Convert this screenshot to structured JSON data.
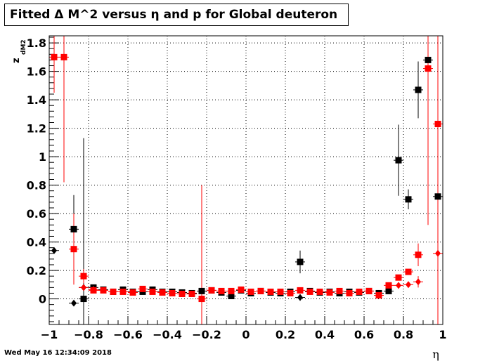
{
  "title": "Fitted Δ M^2 versus η and p for Global deuteron",
  "timestamp": "Wed May 16 12:34:09 2018",
  "chart_data": {
    "type": "scatter",
    "title": "Fitted Δ M^2 versus η and p for Global deuteron",
    "xlabel": "η",
    "ylabel": "z",
    "ylabel_sub": "dM2",
    "xlim": [
      -1,
      1
    ],
    "ylim": [
      -0.18,
      1.85
    ],
    "x_ticks": [
      -1,
      -0.8,
      -0.6,
      -0.4,
      -0.2,
      0,
      0.2,
      0.4,
      0.6,
      0.8,
      1
    ],
    "x_tick_labels": [
      "−1",
      "−0.8",
      "−0.6",
      "−0.4",
      "−0.2",
      "0",
      "0.2",
      "0.4",
      "0.6",
      "0.8",
      "1"
    ],
    "y_ticks": [
      0,
      0.2,
      0.4,
      0.6,
      0.8,
      1,
      1.2,
      1.4,
      1.6,
      1.8
    ],
    "y_tick_labels": [
      "0",
      "0.2",
      "0.4",
      "0.6",
      "0.8",
      "1",
      "1.2",
      "1.4",
      "1.6",
      "1.8"
    ],
    "grid": true,
    "series": [
      {
        "color": "#000000",
        "marker": "diamond",
        "points": [
          {
            "x": -0.975,
            "y": 0.34,
            "err": 0
          },
          {
            "x": -0.875,
            "y": -0.03,
            "err": 0
          },
          {
            "x": -0.825,
            "y": 0.08,
            "err": 0
          },
          {
            "x": 0.275,
            "y": 0.01,
            "err": 0
          }
        ]
      },
      {
        "color": "#000000",
        "marker": "square",
        "points": [
          {
            "x": -0.875,
            "y": 0.49,
            "err": 0.24
          },
          {
            "x": -0.825,
            "y": 0.0,
            "err": 1.13
          },
          {
            "x": -0.775,
            "y": 0.08,
            "err": 0
          },
          {
            "x": -0.725,
            "y": 0.065,
            "err": 0
          },
          {
            "x": -0.675,
            "y": 0.05,
            "err": 0
          },
          {
            "x": -0.625,
            "y": 0.065,
            "err": 0
          },
          {
            "x": -0.575,
            "y": 0.05,
            "err": 0
          },
          {
            "x": -0.525,
            "y": 0.05,
            "err": 0
          },
          {
            "x": -0.475,
            "y": 0.065,
            "err": 0
          },
          {
            "x": -0.425,
            "y": 0.05,
            "err": 0
          },
          {
            "x": -0.375,
            "y": 0.05,
            "err": 0
          },
          {
            "x": -0.325,
            "y": 0.045,
            "err": 0
          },
          {
            "x": -0.275,
            "y": 0.04,
            "err": 0
          },
          {
            "x": -0.225,
            "y": 0.055,
            "err": 0
          },
          {
            "x": -0.175,
            "y": 0.06,
            "err": 0
          },
          {
            "x": -0.125,
            "y": 0.045,
            "err": 0
          },
          {
            "x": -0.075,
            "y": 0.02,
            "err": 0
          },
          {
            "x": -0.025,
            "y": 0.06,
            "err": 0
          },
          {
            "x": 0.025,
            "y": 0.04,
            "err": 0
          },
          {
            "x": 0.075,
            "y": 0.055,
            "err": 0
          },
          {
            "x": 0.125,
            "y": 0.045,
            "err": 0
          },
          {
            "x": 0.175,
            "y": 0.04,
            "err": 0
          },
          {
            "x": 0.225,
            "y": 0.05,
            "err": 0
          },
          {
            "x": 0.275,
            "y": 0.26,
            "err": 0.08
          },
          {
            "x": 0.325,
            "y": 0.055,
            "err": 0
          },
          {
            "x": 0.375,
            "y": 0.045,
            "err": 0
          },
          {
            "x": 0.425,
            "y": 0.05,
            "err": 0
          },
          {
            "x": 0.475,
            "y": 0.04,
            "err": 0
          },
          {
            "x": 0.525,
            "y": 0.05,
            "err": 0
          },
          {
            "x": 0.575,
            "y": 0.045,
            "err": 0
          },
          {
            "x": 0.625,
            "y": 0.055,
            "err": 0
          },
          {
            "x": 0.675,
            "y": 0.04,
            "err": 0
          },
          {
            "x": 0.725,
            "y": 0.055,
            "err": 0
          },
          {
            "x": 0.775,
            "y": 0.975,
            "err": 0.25
          },
          {
            "x": 0.825,
            "y": 0.7,
            "err": 0.07
          },
          {
            "x": 0.875,
            "y": 1.47,
            "err": 0.2
          },
          {
            "x": 0.925,
            "y": 1.68,
            "err": 0.09
          },
          {
            "x": 0.975,
            "y": 0.72,
            "err": 0.2
          }
        ]
      },
      {
        "color": "#ff0000",
        "marker": "diamond",
        "points": [
          {
            "x": -0.825,
            "y": 0.08,
            "err": 0
          },
          {
            "x": -0.775,
            "y": 0.065,
            "err": 0
          },
          {
            "x": 0.775,
            "y": 0.095,
            "err": 0
          },
          {
            "x": 0.825,
            "y": 0.1,
            "err": 0
          },
          {
            "x": 0.875,
            "y": 0.12,
            "err": 0.04
          },
          {
            "x": 0.975,
            "y": 0.32,
            "err": 1.2
          }
        ]
      },
      {
        "color": "#ff0000",
        "marker": "square",
        "points": [
          {
            "x": -0.975,
            "y": 1.7,
            "err": 0.25
          },
          {
            "x": -0.925,
            "y": 1.7,
            "err": 0.88
          },
          {
            "x": -0.875,
            "y": 0.35,
            "err": 0.25
          },
          {
            "x": -0.825,
            "y": 0.16,
            "err": 0.05
          },
          {
            "x": -0.775,
            "y": 0.06,
            "err": 0
          },
          {
            "x": -0.725,
            "y": 0.06,
            "err": 0
          },
          {
            "x": -0.675,
            "y": 0.05,
            "err": 0
          },
          {
            "x": -0.625,
            "y": 0.05,
            "err": 0
          },
          {
            "x": -0.575,
            "y": 0.045,
            "err": 0
          },
          {
            "x": -0.525,
            "y": 0.07,
            "err": 0
          },
          {
            "x": -0.475,
            "y": 0.05,
            "err": 0
          },
          {
            "x": -0.425,
            "y": 0.045,
            "err": 0
          },
          {
            "x": -0.375,
            "y": 0.04,
            "err": 0
          },
          {
            "x": -0.325,
            "y": 0.035,
            "err": 0
          },
          {
            "x": -0.275,
            "y": 0.035,
            "err": 0
          },
          {
            "x": -0.225,
            "y": 0.0,
            "err": 0.8
          },
          {
            "x": -0.175,
            "y": 0.06,
            "err": 0
          },
          {
            "x": -0.125,
            "y": 0.055,
            "err": 0
          },
          {
            "x": -0.075,
            "y": 0.055,
            "err": 0
          },
          {
            "x": -0.025,
            "y": 0.065,
            "err": 0
          },
          {
            "x": 0.025,
            "y": 0.05,
            "err": 0
          },
          {
            "x": 0.075,
            "y": 0.055,
            "err": 0
          },
          {
            "x": 0.125,
            "y": 0.05,
            "err": 0
          },
          {
            "x": 0.175,
            "y": 0.05,
            "err": 0
          },
          {
            "x": 0.225,
            "y": 0.04,
            "err": 0
          },
          {
            "x": 0.275,
            "y": 0.06,
            "err": 0
          },
          {
            "x": 0.325,
            "y": 0.05,
            "err": 0
          },
          {
            "x": 0.375,
            "y": 0.05,
            "err": 0
          },
          {
            "x": 0.425,
            "y": 0.045,
            "err": 0
          },
          {
            "x": 0.475,
            "y": 0.055,
            "err": 0
          },
          {
            "x": 0.525,
            "y": 0.04,
            "err": 0
          },
          {
            "x": 0.575,
            "y": 0.05,
            "err": 0
          },
          {
            "x": 0.625,
            "y": 0.055,
            "err": 0
          },
          {
            "x": 0.675,
            "y": 0.025,
            "err": 0
          },
          {
            "x": 0.725,
            "y": 0.095,
            "err": 0
          },
          {
            "x": 0.775,
            "y": 0.15,
            "err": 0
          },
          {
            "x": 0.825,
            "y": 0.19,
            "err": 0
          },
          {
            "x": 0.875,
            "y": 0.31,
            "err": 0.08
          },
          {
            "x": 0.925,
            "y": 1.62,
            "err": 1.1
          },
          {
            "x": 0.975,
            "y": 1.23,
            "err": 1.2
          }
        ]
      }
    ]
  }
}
